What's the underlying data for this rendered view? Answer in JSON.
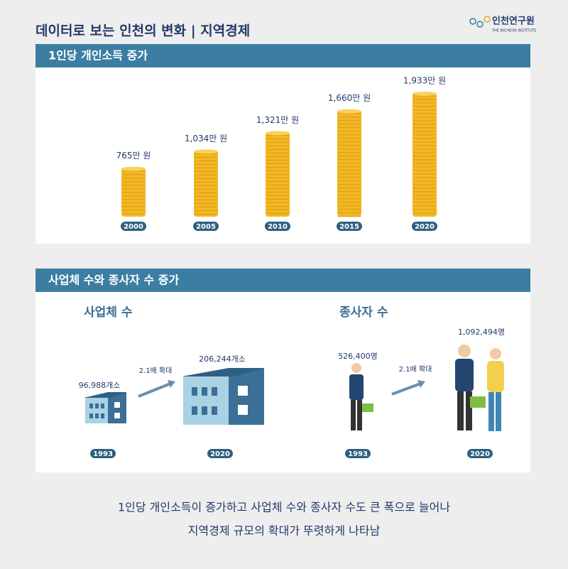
{
  "header": {
    "title": "데이터로 보는 인천의 변화 | 지역경제",
    "logo": "인천연구원",
    "logo_sub": "THE INCHEON INSTITUTE"
  },
  "chart_data": {
    "type": "coin",
    "title": "1인당 개인소득 증가",
    "categories": [
      "2000",
      "2005",
      "2010",
      "2015",
      "2020"
    ],
    "values": [
      765,
      1034,
      1321,
      1660,
      1933
    ],
    "value_labels": [
      "765만 원",
      "1,034만 원",
      "1,321만 원",
      "1,660만 원",
      "1,933만 원"
    ],
    "color": "#f2b824"
  },
  "section2": {
    "title": "사업체 수와 종사자 수 증가",
    "business": {
      "title": "사업체 수",
      "before": "96,988개소",
      "after": "206,244개소",
      "growth": "2.1배 확대",
      "year_before": "1993",
      "year_after": "2020"
    },
    "workers": {
      "title": "종사자 수",
      "before": "526,400명",
      "after": "1,092,494명",
      "growth": "2.1배 확대",
      "year_before": "1993",
      "year_after": "2020"
    }
  },
  "footer": {
    "line1": "1인당 개인소득이 증가하고 사업체 수와 종사자 수도 큰 폭으로 늘어나",
    "line2": "지역경제 규모의 확대가 뚜렷하게 나타남"
  }
}
